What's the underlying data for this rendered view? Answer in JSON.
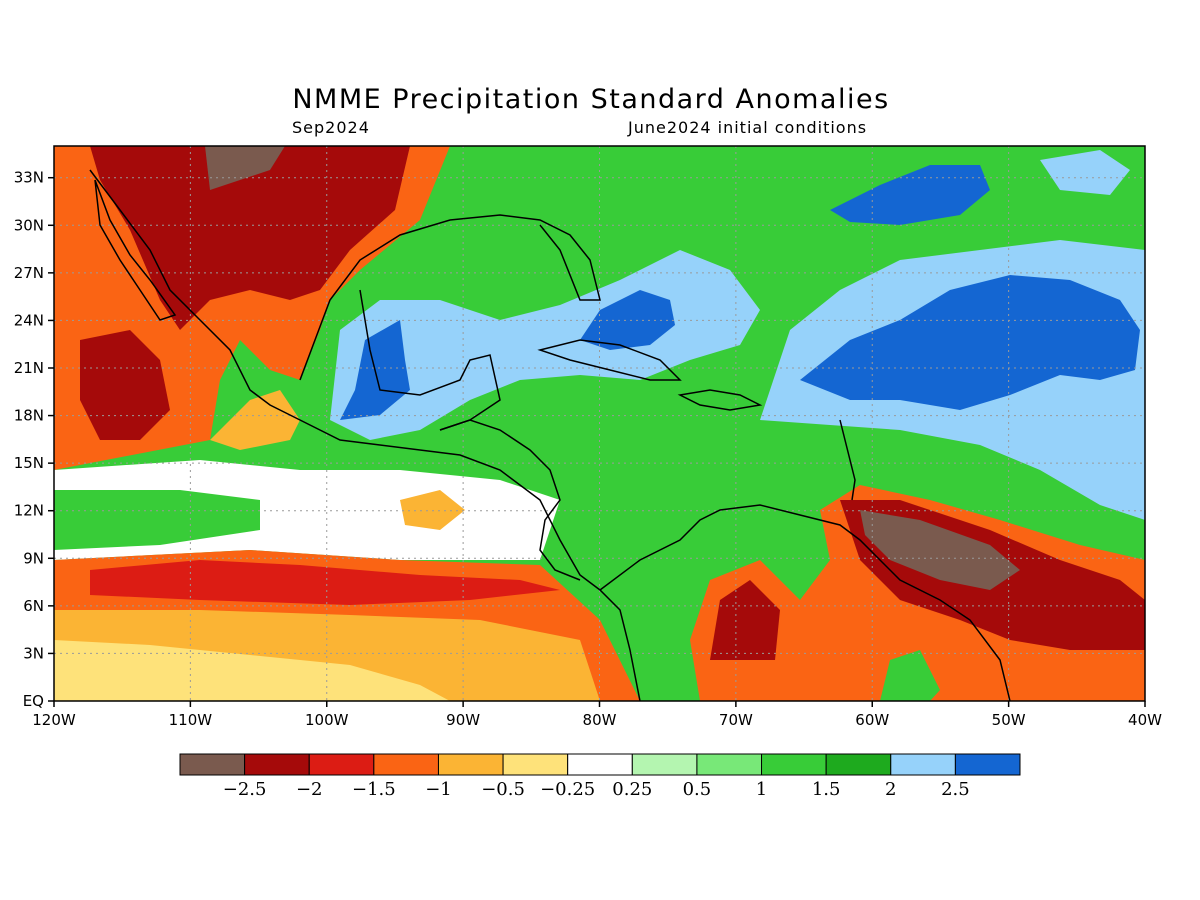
{
  "title": "NMME Precipitation Standard Anomalies",
  "subtitle_left": "Sep2024",
  "subtitle_right": "June2024 initial conditions",
  "map": {
    "lon_range": [
      -120,
      -40
    ],
    "lat_range": [
      0,
      35
    ],
    "lon_ticks": [
      {
        "value": -120,
        "label": "120W"
      },
      {
        "value": -110,
        "label": "110W"
      },
      {
        "value": -100,
        "label": "100W"
      },
      {
        "value": -90,
        "label": "90W"
      },
      {
        "value": -80,
        "label": "80W"
      },
      {
        "value": -70,
        "label": "70W"
      },
      {
        "value": -60,
        "label": "60W"
      },
      {
        "value": -50,
        "label": "50W"
      },
      {
        "value": -40,
        "label": "40W"
      }
    ],
    "lat_ticks": [
      {
        "value": 0,
        "label": "EQ"
      },
      {
        "value": 3,
        "label": "3N"
      },
      {
        "value": 6,
        "label": "6N"
      },
      {
        "value": 9,
        "label": "9N"
      },
      {
        "value": 12,
        "label": "12N"
      },
      {
        "value": 15,
        "label": "15N"
      },
      {
        "value": 18,
        "label": "18N"
      },
      {
        "value": 21,
        "label": "21N"
      },
      {
        "value": 24,
        "label": "24N"
      },
      {
        "value": 27,
        "label": "27N"
      },
      {
        "value": 30,
        "label": "30N"
      },
      {
        "value": 33,
        "label": "33N"
      }
    ],
    "grid": true
  },
  "colorbar": {
    "colors": [
      "#7a5a4e",
      "#a50a0a",
      "#dc1c14",
      "#fa6414",
      "#fbb434",
      "#fee27a",
      "#ffffff",
      "#b4f5b0",
      "#78e878",
      "#38cc38",
      "#1eaa1e",
      "#96d2fa",
      "#1466d2"
    ],
    "labels": [
      "-2.5",
      "-2",
      "-1.5",
      "-1",
      "-0.5",
      "-0.25",
      "0.25",
      "0.5",
      "1",
      "1.5",
      "2",
      "2.5"
    ]
  }
}
